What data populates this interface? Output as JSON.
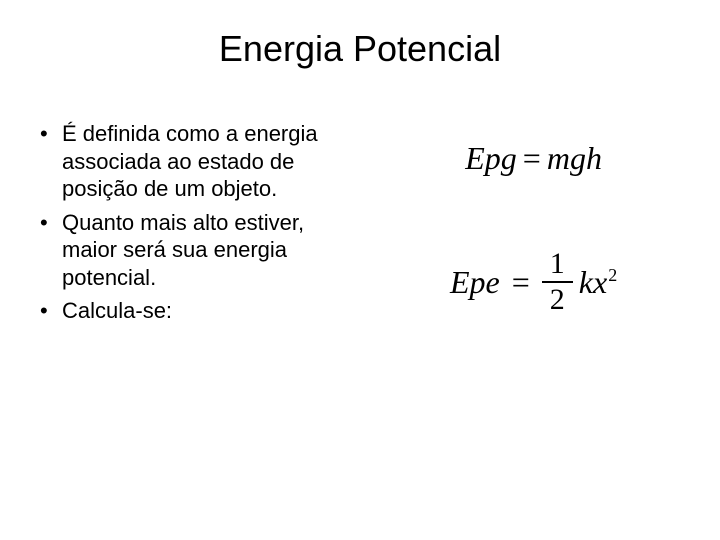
{
  "slide": {
    "title": "Energia Potencial",
    "bullets": [
      "É definida como a energia associada ao estado de posição de um objeto.",
      "Quanto mais alto estiver, maior será sua energia potencial.",
      "Calcula-se:"
    ],
    "formula1": {
      "lhs": "Epg",
      "eq": "=",
      "rhs": "mgh"
    },
    "formula2": {
      "lhs": "Epe",
      "eq": "=",
      "frac_num": "1",
      "frac_den": "2",
      "var": "kx",
      "exp": "2"
    }
  },
  "style": {
    "background_color": "#ffffff",
    "text_color": "#000000",
    "title_fontsize": 36,
    "body_fontsize": 22,
    "formula_fontsize": 32,
    "body_font": "Arial",
    "formula_font": "Times New Roman"
  }
}
